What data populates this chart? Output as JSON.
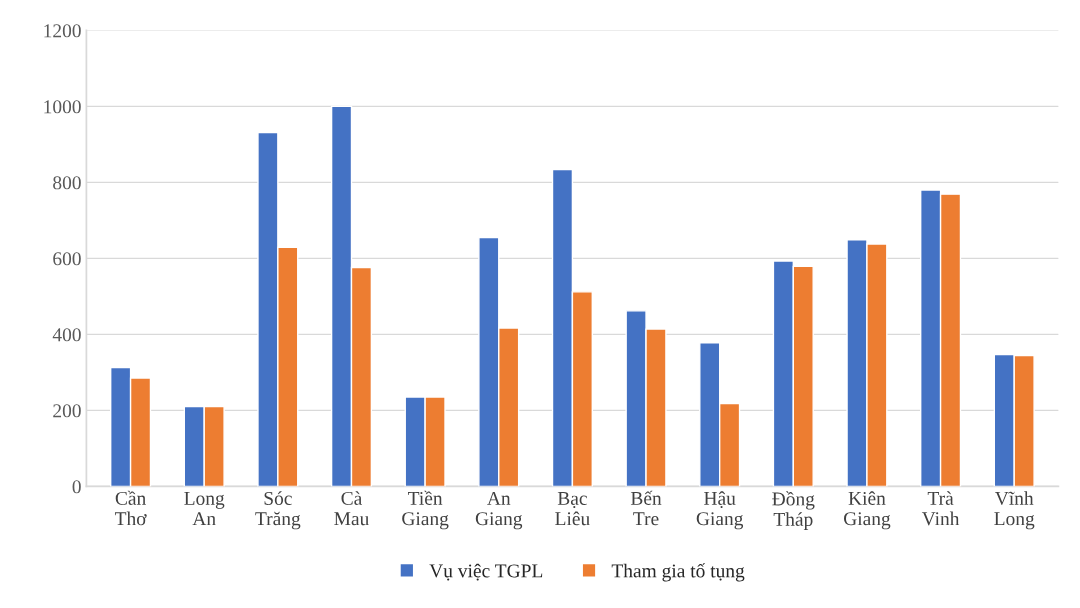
{
  "chart_data": {
    "type": "bar",
    "categories": [
      "Cần\nThơ",
      "Long\nAn",
      "Sóc\nTrăng",
      "Cà\nMau",
      "Tiền\nGiang",
      "An\nGiang",
      "Bạc\nLiêu",
      "Bến\nTre",
      "Hậu\nGiang",
      "Đồng\nTháp",
      "Kiên\nGiang",
      "Trà\nVinh",
      "Vĩnh\nLong"
    ],
    "series": [
      {
        "name": "Vụ việc TGPL",
        "color": "#4472c4",
        "values": [
          313,
          210,
          931,
          1000,
          235,
          655,
          834,
          462,
          378,
          593,
          649,
          780,
          347
        ]
      },
      {
        "name": "Tham gia tố tụng",
        "color": "#ed7d31",
        "values": [
          285,
          210,
          629,
          576,
          235,
          417,
          512,
          414,
          218,
          579,
          638,
          769,
          344
        ]
      }
    ],
    "ylim": [
      0,
      1200
    ],
    "yticks": [
      0,
      200,
      400,
      600,
      800,
      1000,
      1200
    ],
    "grid": "y",
    "legend": "bottom"
  }
}
